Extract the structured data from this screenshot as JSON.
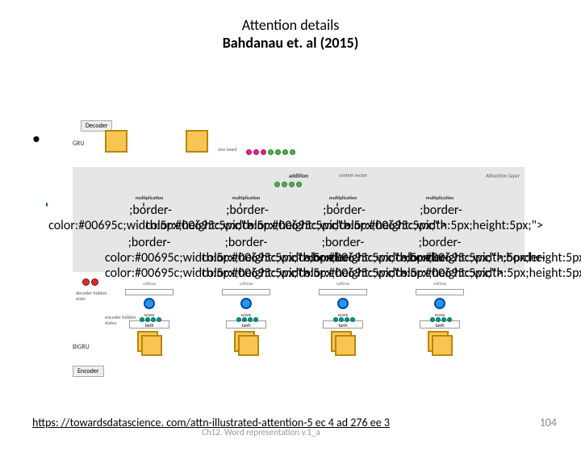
{
  "title": {
    "line1": "Attention details",
    "line2": "Bahdanau et. al (2015)"
  },
  "bullet": "•",
  "labels": {
    "decoder": "Decoder",
    "gru": "GRU",
    "oneword": "one word",
    "attention_layer": "Attention layer",
    "addition": "addition",
    "context_vector": "context vector",
    "multiplication": "multiplication",
    "softmax": "softmax",
    "score": "score",
    "tanh": "tanh",
    "decoder_hidden": "decoder hidden state",
    "encoder_hidden": "encoder hidden states",
    "bigru": "BiGRU",
    "encoder": "Encoder"
  },
  "colors": {
    "orange_fill": "#f9c552",
    "orange_border": "#b8860b",
    "pink": "#e91e8c",
    "green": "#4caf50",
    "red": "#d32f2f",
    "blue": "#2196f3",
    "teal": "#009688",
    "grey_bg": "#e6e6e6"
  },
  "columns": [
    95,
    215,
    335,
    455
  ],
  "footer": {
    "link_text": "https: //towardsdatascience. com/attn-illustrated-attention-5 ec 4 ad 276 ee 3",
    "grey": "Ch12. Word representation v.1_a",
    "page": "104"
  }
}
